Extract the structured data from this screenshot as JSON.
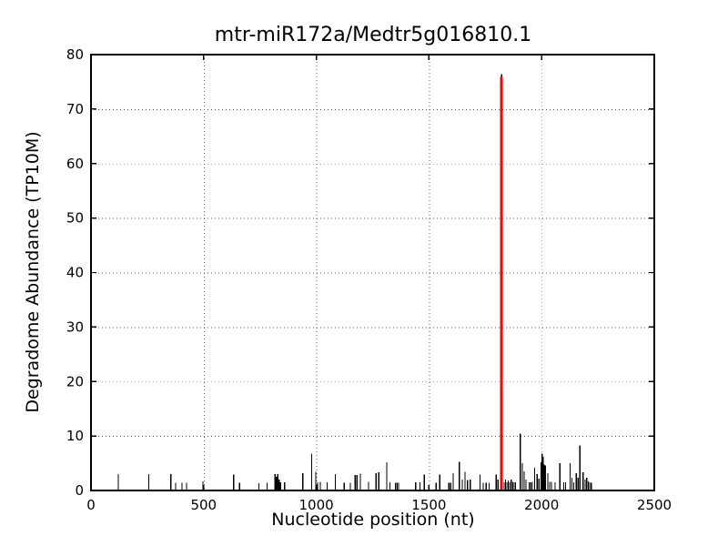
{
  "figure": {
    "background": "#ffffff",
    "text_color": "#000000"
  },
  "chart_data": {
    "type": "bar",
    "title": "mtr-miR172a/Medtr5g016810.1",
    "xlabel": "Nucleotide position (nt)",
    "ylabel": "Degradome Abundance (TP10M)",
    "xlim": [
      0,
      2500
    ],
    "ylim": [
      0,
      80
    ],
    "xticks": [
      0,
      500,
      1000,
      1500,
      2000,
      2500
    ],
    "yticks": [
      0,
      10,
      20,
      30,
      40,
      50,
      60,
      70,
      80
    ],
    "grid": {
      "visible": true,
      "style": "dotted",
      "color": "#555555"
    },
    "colors": {
      "spike": "#000000",
      "highlight": "#ff0000",
      "axis": "#000000"
    },
    "highlight_peak": {
      "x": 1822,
      "black_height": 76.4,
      "red_height": 75.9
    },
    "spikes": [
      [
        121,
        3.0
      ],
      [
        256,
        3.0
      ],
      [
        354,
        3.0
      ],
      [
        375,
        1.4
      ],
      [
        404,
        1.4
      ],
      [
        424,
        1.4
      ],
      [
        497,
        1.7
      ],
      [
        633,
        2.9
      ],
      [
        659,
        1.4
      ],
      [
        745,
        1.3
      ],
      [
        781,
        1.4
      ],
      [
        817,
        3.0
      ],
      [
        823,
        2.5
      ],
      [
        829,
        3.0
      ],
      [
        835,
        2.0
      ],
      [
        841,
        1.5
      ],
      [
        859,
        1.5
      ],
      [
        940,
        3.2
      ],
      [
        980,
        6.8
      ],
      [
        997,
        3.4
      ],
      [
        1006,
        1.5
      ],
      [
        1018,
        1.6
      ],
      [
        1048,
        1.5
      ],
      [
        1084,
        3.0
      ],
      [
        1124,
        1.4
      ],
      [
        1151,
        1.4
      ],
      [
        1172,
        2.8
      ],
      [
        1180,
        2.8
      ],
      [
        1196,
        3.1
      ],
      [
        1232,
        1.6
      ],
      [
        1265,
        3.2
      ],
      [
        1277,
        3.3
      ],
      [
        1312,
        5.2
      ],
      [
        1327,
        1.5
      ],
      [
        1351,
        1.4
      ],
      [
        1358,
        1.4
      ],
      [
        1365,
        1.4
      ],
      [
        1441,
        1.5
      ],
      [
        1460,
        1.5
      ],
      [
        1479,
        2.9
      ],
      [
        1532,
        1.4
      ],
      [
        1548,
        2.9
      ],
      [
        1588,
        1.4
      ],
      [
        1596,
        1.4
      ],
      [
        1608,
        3.2
      ],
      [
        1635,
        5.3
      ],
      [
        1648,
        2.0
      ],
      [
        1660,
        3.4
      ],
      [
        1671,
        1.9
      ],
      [
        1683,
        2.0
      ],
      [
        1727,
        2.9
      ],
      [
        1741,
        1.4
      ],
      [
        1754,
        1.4
      ],
      [
        1767,
        1.4
      ],
      [
        1798,
        2.9
      ],
      [
        1806,
        2.0
      ],
      [
        1834,
        1.5
      ],
      [
        1840,
        2.0
      ],
      [
        1846,
        1.5
      ],
      [
        1852,
        1.8
      ],
      [
        1858,
        1.5
      ],
      [
        1865,
        2.0
      ],
      [
        1872,
        1.6
      ],
      [
        1878,
        1.5
      ],
      [
        1884,
        1.5
      ],
      [
        1905,
        10.4
      ],
      [
        1914,
        5.0
      ],
      [
        1922,
        3.5
      ],
      [
        1930,
        2.0
      ],
      [
        1946,
        1.5
      ],
      [
        1953,
        1.5
      ],
      [
        1959,
        1.6
      ],
      [
        1969,
        4.2
      ],
      [
        1980,
        3.0
      ],
      [
        1988,
        2.2
      ],
      [
        1998,
        5.2
      ],
      [
        2002,
        6.8
      ],
      [
        2006,
        6.2
      ],
      [
        2010,
        4.8
      ],
      [
        2016,
        4.6
      ],
      [
        2028,
        3.2
      ],
      [
        2036,
        1.6
      ],
      [
        2044,
        1.6
      ],
      [
        2060,
        1.5
      ],
      [
        2081,
        5.0
      ],
      [
        2098,
        1.5
      ],
      [
        2106,
        1.5
      ],
      [
        2126,
        5.0
      ],
      [
        2134,
        2.3
      ],
      [
        2142,
        1.5
      ],
      [
        2154,
        3.2
      ],
      [
        2162,
        2.3
      ],
      [
        2170,
        8.3
      ],
      [
        2184,
        3.3
      ],
      [
        2193,
        2.0
      ],
      [
        2200,
        2.3
      ],
      [
        2207,
        1.7
      ],
      [
        2213,
        1.5
      ],
      [
        2220,
        1.4
      ]
    ]
  }
}
